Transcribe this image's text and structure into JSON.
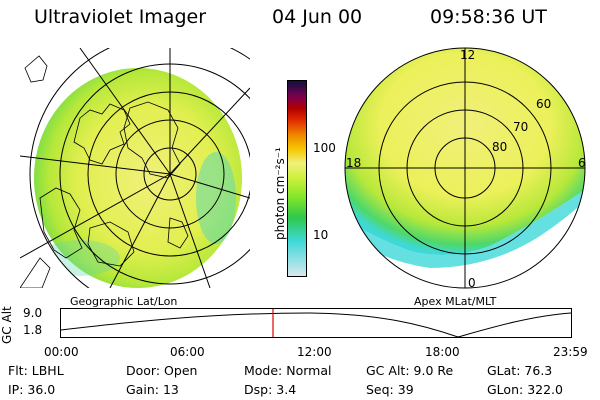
{
  "header": {
    "title": "Ultraviolet Imager",
    "date": "04 Jun 00",
    "time": "09:58:36 UT"
  },
  "colorbar": {
    "unit_label": "photon cm⁻²s⁻¹",
    "ticks": [
      "100",
      "10"
    ],
    "colors": [
      "#d8e8ee",
      "#3ed8d8",
      "#2ec84a",
      "#7fe62a",
      "#ccf03a",
      "#f0f07a",
      "#f5c800",
      "#f08a00",
      "#e02a00",
      "#b00000",
      "#7a0050",
      "#101040"
    ]
  },
  "geo_panel": {
    "caption": "Geographic Lat/Lon"
  },
  "mag_panel": {
    "caption": "Apex MLat/MLT",
    "mlt_labels": {
      "top": "12",
      "bottom": "0",
      "left": "18",
      "right": "6"
    },
    "lat_labels": [
      "60",
      "70",
      "80"
    ]
  },
  "altitude_plot": {
    "ylabel": "GC Alt",
    "yticks": [
      "9.0",
      "1.8"
    ],
    "xticks": [
      "00:00",
      "06:00",
      "12:00",
      "18:00",
      "23:59"
    ],
    "marker_time_fraction": 0.4157,
    "marker_color": "#e00000"
  },
  "status": {
    "row1": [
      {
        "label": "Flt:",
        "value": "LBHL"
      },
      {
        "label": "Door:",
        "value": "Open"
      },
      {
        "label": "Mode:",
        "value": "Normal"
      },
      {
        "label": "GC Alt:",
        "value": "9.0 Re"
      },
      {
        "label": "GLat:",
        "value": "76.3"
      }
    ],
    "row2": [
      {
        "label": "IP:",
        "value": "36.0"
      },
      {
        "label": "Gain:",
        "value": "13"
      },
      {
        "label": "Dsp:",
        "value": "3.4"
      },
      {
        "label": "Seq:",
        "value": "39"
      },
      {
        "label": "GLon:",
        "value": "322.0"
      }
    ]
  }
}
